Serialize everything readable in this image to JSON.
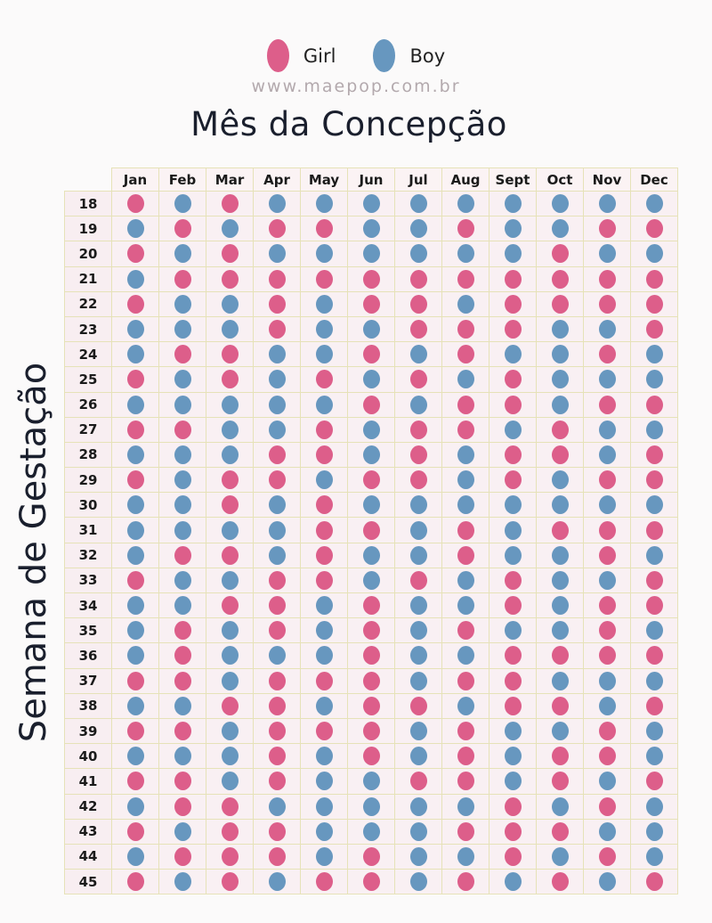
{
  "legend": {
    "girl": {
      "label": "Girl",
      "color": "#dd5e8a"
    },
    "boy": {
      "label": "Boy",
      "color": "#6797bf"
    }
  },
  "website": "www.maepop.com.br",
  "title": "Mês da Concepção",
  "y_axis_label": "Semana de Gestação",
  "chart_data": {
    "type": "table",
    "title": "Mês da Concepção",
    "xlabel": "Mês da Concepção",
    "ylabel": "Semana de Gestação",
    "legend": [
      "Girl",
      "Boy"
    ],
    "categories": [
      "Jan",
      "Feb",
      "Mar",
      "Apr",
      "May",
      "Jun",
      "Jul",
      "Aug",
      "Sept",
      "Oct",
      "Nov",
      "Dec"
    ],
    "rows": [
      {
        "week": "18",
        "values": [
          "G",
          "B",
          "G",
          "B",
          "B",
          "B",
          "B",
          "B",
          "B",
          "B",
          "B",
          "B"
        ]
      },
      {
        "week": "19",
        "values": [
          "B",
          "G",
          "B",
          "G",
          "G",
          "B",
          "B",
          "G",
          "B",
          "B",
          "G",
          "G"
        ]
      },
      {
        "week": "20",
        "values": [
          "G",
          "B",
          "G",
          "B",
          "B",
          "B",
          "B",
          "B",
          "B",
          "G",
          "B",
          "B"
        ]
      },
      {
        "week": "21",
        "values": [
          "B",
          "G",
          "G",
          "G",
          "G",
          "G",
          "G",
          "G",
          "G",
          "G",
          "G",
          "G"
        ]
      },
      {
        "week": "22",
        "values": [
          "G",
          "B",
          "B",
          "G",
          "B",
          "G",
          "G",
          "B",
          "G",
          "G",
          "G",
          "G"
        ]
      },
      {
        "week": "23",
        "values": [
          "B",
          "B",
          "B",
          "G",
          "B",
          "B",
          "G",
          "G",
          "G",
          "B",
          "B",
          "G"
        ]
      },
      {
        "week": "24",
        "values": [
          "B",
          "G",
          "G",
          "B",
          "B",
          "G",
          "B",
          "G",
          "B",
          "B",
          "G",
          "B"
        ]
      },
      {
        "week": "25",
        "values": [
          "G",
          "B",
          "G",
          "B",
          "G",
          "B",
          "G",
          "B",
          "G",
          "B",
          "B",
          "B"
        ]
      },
      {
        "week": "26",
        "values": [
          "B",
          "B",
          "B",
          "B",
          "B",
          "G",
          "B",
          "G",
          "G",
          "B",
          "G",
          "G"
        ]
      },
      {
        "week": "27",
        "values": [
          "G",
          "G",
          "B",
          "B",
          "G",
          "B",
          "G",
          "G",
          "B",
          "G",
          "B",
          "B"
        ]
      },
      {
        "week": "28",
        "values": [
          "B",
          "B",
          "B",
          "G",
          "G",
          "B",
          "G",
          "B",
          "G",
          "G",
          "B",
          "G"
        ]
      },
      {
        "week": "29",
        "values": [
          "G",
          "B",
          "G",
          "G",
          "B",
          "G",
          "G",
          "B",
          "G",
          "B",
          "G",
          "G"
        ]
      },
      {
        "week": "30",
        "values": [
          "B",
          "B",
          "G",
          "B",
          "G",
          "B",
          "B",
          "B",
          "B",
          "B",
          "B",
          "B"
        ]
      },
      {
        "week": "31",
        "values": [
          "B",
          "B",
          "B",
          "B",
          "G",
          "G",
          "B",
          "G",
          "B",
          "G",
          "G",
          "G"
        ]
      },
      {
        "week": "32",
        "values": [
          "B",
          "G",
          "G",
          "B",
          "G",
          "B",
          "B",
          "G",
          "B",
          "B",
          "G",
          "B"
        ]
      },
      {
        "week": "33",
        "values": [
          "G",
          "B",
          "B",
          "G",
          "G",
          "B",
          "G",
          "B",
          "G",
          "B",
          "B",
          "G"
        ]
      },
      {
        "week": "34",
        "values": [
          "B",
          "B",
          "G",
          "G",
          "B",
          "G",
          "B",
          "B",
          "G",
          "B",
          "G",
          "G"
        ]
      },
      {
        "week": "35",
        "values": [
          "B",
          "G",
          "B",
          "G",
          "B",
          "G",
          "B",
          "G",
          "B",
          "B",
          "G",
          "B"
        ]
      },
      {
        "week": "36",
        "values": [
          "B",
          "G",
          "B",
          "B",
          "B",
          "G",
          "B",
          "B",
          "G",
          "G",
          "G",
          "G"
        ]
      },
      {
        "week": "37",
        "values": [
          "G",
          "G",
          "B",
          "G",
          "G",
          "G",
          "B",
          "G",
          "G",
          "B",
          "B",
          "B"
        ]
      },
      {
        "week": "38",
        "values": [
          "B",
          "B",
          "G",
          "G",
          "B",
          "G",
          "G",
          "B",
          "G",
          "G",
          "B",
          "G"
        ]
      },
      {
        "week": "39",
        "values": [
          "G",
          "G",
          "B",
          "G",
          "G",
          "G",
          "B",
          "G",
          "B",
          "B",
          "G",
          "B"
        ]
      },
      {
        "week": "40",
        "values": [
          "B",
          "B",
          "B",
          "G",
          "B",
          "G",
          "B",
          "G",
          "B",
          "G",
          "G",
          "B"
        ]
      },
      {
        "week": "41",
        "values": [
          "G",
          "G",
          "B",
          "G",
          "B",
          "B",
          "G",
          "G",
          "B",
          "G",
          "B",
          "G"
        ]
      },
      {
        "week": "42",
        "values": [
          "B",
          "G",
          "G",
          "B",
          "B",
          "B",
          "B",
          "B",
          "G",
          "B",
          "G",
          "B"
        ]
      },
      {
        "week": "43",
        "values": [
          "G",
          "B",
          "G",
          "G",
          "B",
          "B",
          "B",
          "G",
          "G",
          "G",
          "B",
          "B"
        ]
      },
      {
        "week": "44",
        "values": [
          "B",
          "G",
          "G",
          "G",
          "B",
          "G",
          "B",
          "B",
          "G",
          "B",
          "G",
          "B"
        ]
      },
      {
        "week": "45",
        "values": [
          "G",
          "B",
          "G",
          "B",
          "G",
          "G",
          "B",
          "G",
          "B",
          "G",
          "B",
          "G"
        ]
      }
    ],
    "value_key": {
      "G": "Girl",
      "B": "Boy"
    }
  }
}
